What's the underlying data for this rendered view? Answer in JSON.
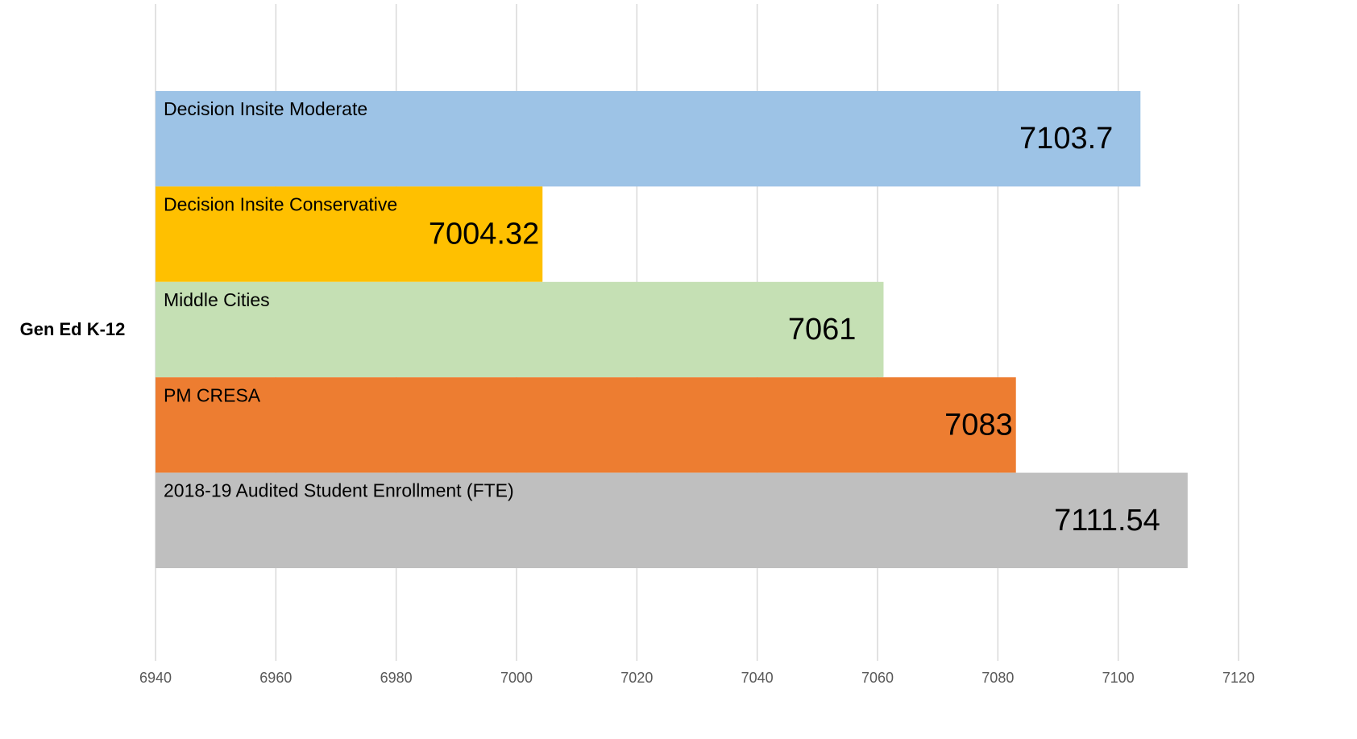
{
  "chart_data": {
    "type": "barh",
    "categories": [
      "Gen Ed K-12"
    ],
    "series": [
      {
        "name": "Decision Insite Moderate",
        "color": "#9dc3e6",
        "values": [
          7103.7
        ]
      },
      {
        "name": "Decision Insite Conservative",
        "color": "#ffc000",
        "values": [
          7004.32
        ]
      },
      {
        "name": "Middle Cities",
        "color": "#c5e0b4",
        "values": [
          7061
        ]
      },
      {
        "name": "PM CRESA",
        "color": "#ed7d31",
        "values": [
          7083
        ]
      },
      {
        "name": "2018-19 Audited Student Enrollment (FTE)",
        "color": "#bfbfbf",
        "values": [
          7111.54
        ]
      }
    ],
    "xlim": [
      6940,
      7120
    ],
    "xticks": [
      6940,
      6960,
      6980,
      7000,
      7020,
      7040,
      7060,
      7080,
      7100,
      7120
    ],
    "grid": true
  }
}
